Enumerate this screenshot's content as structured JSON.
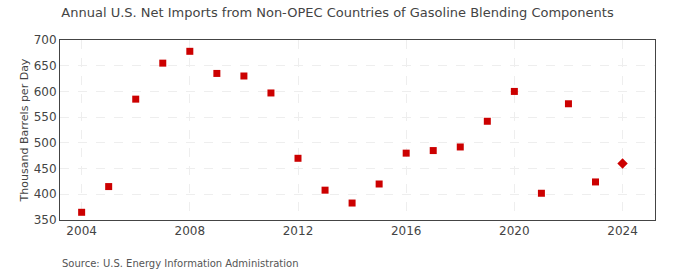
{
  "chart_data": {
    "type": "scatter",
    "title": "Annual U.S. Net Imports from Non-OPEC Countries of Gasoline Blending Components",
    "ylabel": "Thousand Barrels per Day",
    "annotations": [
      "Source: U.S. Energy Information Administration"
    ],
    "x": [
      2004,
      2005,
      2006,
      2007,
      2008,
      2009,
      2010,
      2011,
      2012,
      2013,
      2014,
      2015,
      2016,
      2017,
      2018,
      2019,
      2020,
      2021,
      2022,
      2023,
      2024
    ],
    "series": [
      {
        "color": "#cc0000",
        "marker": "square",
        "values": [
          365,
          415,
          585,
          655,
          678,
          635,
          630,
          597,
          470,
          408,
          383,
          420,
          480,
          485,
          492,
          542,
          600,
          402,
          576,
          424,
          null
        ]
      },
      {
        "color": "#cc0000",
        "marker": "diamond",
        "values": [
          null,
          null,
          null,
          null,
          null,
          null,
          null,
          null,
          null,
          null,
          null,
          null,
          null,
          null,
          null,
          null,
          null,
          null,
          null,
          null,
          460
        ]
      }
    ],
    "xlim": [
      2003.2,
      2025.2
    ],
    "xticks": [
      2004,
      2008,
      2012,
      2016,
      2020,
      2024
    ],
    "ylim": [
      350,
      700
    ],
    "yticks": [
      350,
      400,
      450,
      500,
      550,
      600,
      650,
      700
    ],
    "grid": true
  }
}
